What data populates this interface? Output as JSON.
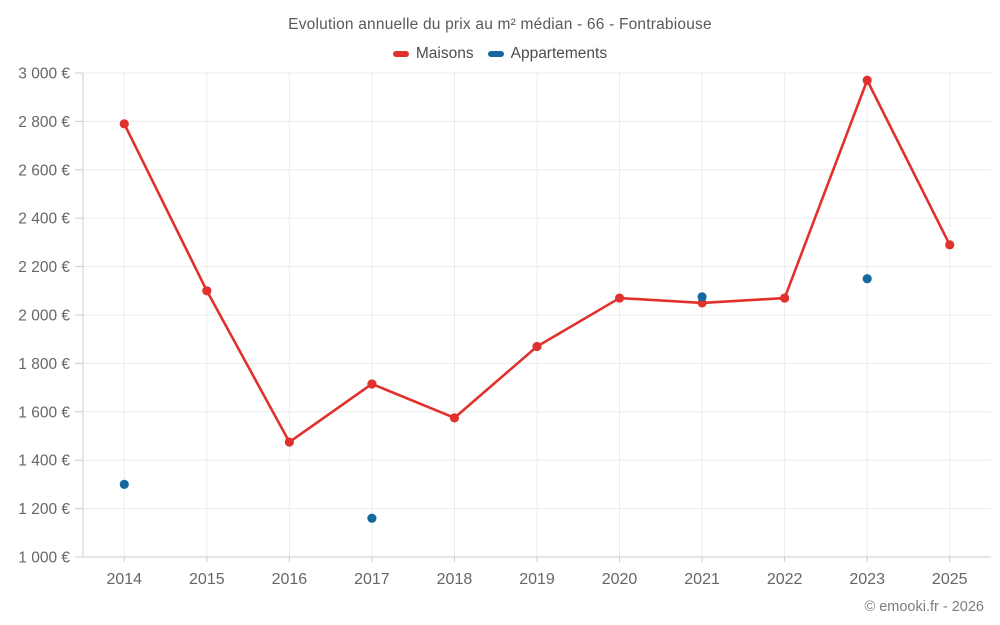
{
  "header": {
    "title": "Evolution annuelle du prix au m² médian - 66 - Fontrabiouse"
  },
  "legend": [
    {
      "label": "Maisons",
      "color": "#e0312d"
    },
    {
      "label": "Appartements",
      "color": "#15699e"
    }
  ],
  "footer": {
    "credit": "© emooki.fr - 2026"
  },
  "colors": {
    "grid": "#ebebeb",
    "axis": "#cccccc",
    "tick_text": "#666666"
  },
  "chart_data": {
    "type": "line",
    "title": "Evolution annuelle du prix au m² médian - 66 - Fontrabiouse",
    "xlabel": "",
    "ylabel": "",
    "grid": true,
    "legend_position": "top",
    "categories": [
      "2014",
      "2015",
      "2016",
      "2017",
      "2018",
      "2019",
      "2020",
      "2021",
      "2022",
      "2023",
      "2025"
    ],
    "series": [
      {
        "name": "Maisons",
        "color": "#e0312d",
        "line": true,
        "marker": "circle",
        "values": [
          2790,
          2100,
          1475,
          1715,
          1575,
          1870,
          2070,
          2050,
          2070,
          2970,
          2290
        ]
      },
      {
        "name": "Appartements",
        "color": "#15699e",
        "line": false,
        "marker": "circle",
        "values": [
          1300,
          null,
          null,
          1160,
          null,
          null,
          null,
          2075,
          null,
          2150,
          null
        ]
      }
    ],
    "ylim": [
      1000,
      3000
    ],
    "ytick_step": 200,
    "yticks": [
      {
        "value": 1000,
        "label": "1 000 €"
      },
      {
        "value": 1200,
        "label": "1 200 €"
      },
      {
        "value": 1400,
        "label": "1 400 €"
      },
      {
        "value": 1600,
        "label": "1 600 €"
      },
      {
        "value": 1800,
        "label": "1 800 €"
      },
      {
        "value": 2000,
        "label": "2 000 €"
      },
      {
        "value": 2200,
        "label": "2 200 €"
      },
      {
        "value": 2400,
        "label": "2 400 €"
      },
      {
        "value": 2600,
        "label": "2 600 €"
      },
      {
        "value": 2800,
        "label": "2 800 €"
      },
      {
        "value": 3000,
        "label": "3 000 €"
      }
    ]
  }
}
